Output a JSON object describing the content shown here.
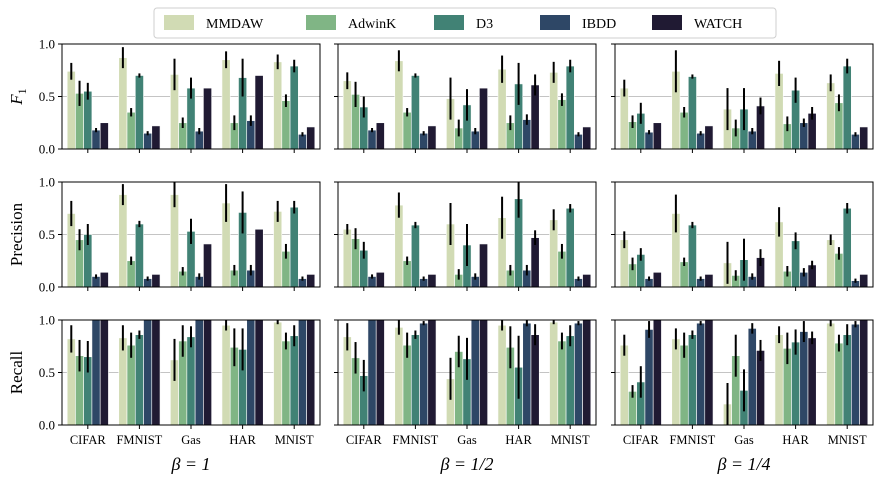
{
  "chart_data": {
    "type": "bar",
    "categories": [
      "CIFAR",
      "FMNIST",
      "Gas",
      "HAR",
      "MNIST"
    ],
    "legend": {
      "placement": "top-center",
      "entries": [
        "MMDAW",
        "AdwinK",
        "D3",
        "IBDD",
        "WATCH"
      ]
    },
    "colors": [
      "#d1dbb4",
      "#80b585",
      "#418275",
      "#2e4766",
      "#201a33"
    ],
    "columns": [
      {
        "xlabel": "β = 1"
      },
      {
        "xlabel": "β = 1/2"
      },
      {
        "xlabel": "β = 1/4"
      }
    ],
    "rows": [
      {
        "ylabel": "F1",
        "ylabel_main": "F",
        "ylabel_sub": "1"
      },
      {
        "ylabel": "Precision"
      },
      {
        "ylabel": "Recall"
      }
    ],
    "ylim": [
      0,
      1.0
    ],
    "yticks": [
      "0.0",
      "0.5",
      "1.0"
    ],
    "grid": "horizontal at 0.5",
    "panels": [
      [
        {
          "values": [
            [
              0.74,
              0.53,
              0.55,
              0.18,
              0.25
            ],
            [
              0.87,
              0.35,
              0.7,
              0.15,
              0.22
            ],
            [
              0.71,
              0.25,
              0.58,
              0.17,
              0.58
            ],
            [
              0.85,
              0.25,
              0.68,
              0.27,
              0.7
            ],
            [
              0.83,
              0.46,
              0.79,
              0.14,
              0.21
            ]
          ],
          "errors": [
            [
              0.08,
              0.12,
              0.08,
              0.02,
              0
            ],
            [
              0.1,
              0.04,
              0.02,
              0.02,
              0
            ],
            [
              0.15,
              0.05,
              0.1,
              0.03,
              0
            ],
            [
              0.08,
              0.07,
              0.18,
              0.05,
              0
            ],
            [
              0.07,
              0.06,
              0.06,
              0.02,
              0
            ]
          ]
        },
        {
          "values": [
            [
              0.65,
              0.52,
              0.4,
              0.18,
              0.25
            ],
            [
              0.84,
              0.35,
              0.7,
              0.15,
              0.22
            ],
            [
              0.48,
              0.2,
              0.42,
              0.17,
              0.58
            ],
            [
              0.76,
              0.25,
              0.62,
              0.28,
              0.61
            ],
            [
              0.73,
              0.47,
              0.79,
              0.14,
              0.21
            ]
          ],
          "errors": [
            [
              0.08,
              0.12,
              0.1,
              0.02,
              0
            ],
            [
              0.1,
              0.04,
              0.02,
              0.02,
              0
            ],
            [
              0.2,
              0.08,
              0.15,
              0.03,
              0
            ],
            [
              0.13,
              0.07,
              0.2,
              0.05,
              0.1
            ],
            [
              0.1,
              0.06,
              0.06,
              0.02,
              0
            ]
          ]
        },
        {
          "values": [
            [
              0.58,
              0.26,
              0.34,
              0.16,
              0.25
            ],
            [
              0.74,
              0.35,
              0.69,
              0.15,
              0.22
            ],
            [
              0.38,
              0.2,
              0.38,
              0.17,
              0.41
            ],
            [
              0.72,
              0.24,
              0.56,
              0.25,
              0.34
            ],
            [
              0.63,
              0.44,
              0.79,
              0.14,
              0.21
            ]
          ],
          "errors": [
            [
              0.08,
              0.06,
              0.1,
              0.02,
              0
            ],
            [
              0.2,
              0.05,
              0.02,
              0.02,
              0
            ],
            [
              0.2,
              0.08,
              0.2,
              0.03,
              0.08
            ],
            [
              0.12,
              0.07,
              0.12,
              0.04,
              0.06
            ],
            [
              0.08,
              0.08,
              0.07,
              0.02,
              0
            ]
          ]
        }
      ],
      [
        {
          "values": [
            [
              0.7,
              0.45,
              0.5,
              0.1,
              0.14
            ],
            [
              0.88,
              0.25,
              0.6,
              0.08,
              0.12
            ],
            [
              0.88,
              0.15,
              0.53,
              0.1,
              0.41
            ],
            [
              0.8,
              0.16,
              0.71,
              0.16,
              0.55
            ],
            [
              0.72,
              0.34,
              0.76,
              0.08,
              0.12
            ]
          ],
          "errors": [
            [
              0.12,
              0.1,
              0.1,
              0.02,
              0
            ],
            [
              0.1,
              0.04,
              0.03,
              0.02,
              0
            ],
            [
              0.12,
              0.04,
              0.12,
              0.03,
              0
            ],
            [
              0.18,
              0.05,
              0.2,
              0.05,
              0
            ],
            [
              0.1,
              0.07,
              0.06,
              0.02,
              0
            ]
          ]
        },
        {
          "values": [
            [
              0.55,
              0.46,
              0.35,
              0.1,
              0.14
            ],
            [
              0.78,
              0.25,
              0.59,
              0.08,
              0.12
            ],
            [
              0.6,
              0.12,
              0.4,
              0.1,
              0.41
            ],
            [
              0.66,
              0.16,
              0.84,
              0.16,
              0.47
            ],
            [
              0.64,
              0.34,
              0.75,
              0.08,
              0.12
            ]
          ],
          "errors": [
            [
              0.05,
              0.1,
              0.08,
              0.02,
              0
            ],
            [
              0.12,
              0.04,
              0.03,
              0.02,
              0
            ],
            [
              0.2,
              0.05,
              0.2,
              0.03,
              0
            ],
            [
              0.2,
              0.05,
              0.18,
              0.05,
              0.07
            ],
            [
              0.1,
              0.07,
              0.04,
              0.02,
              0
            ]
          ]
        },
        {
          "values": [
            [
              0.45,
              0.22,
              0.31,
              0.08,
              0.14
            ],
            [
              0.7,
              0.24,
              0.59,
              0.08,
              0.12
            ],
            [
              0.23,
              0.11,
              0.26,
              0.1,
              0.28
            ],
            [
              0.62,
              0.15,
              0.44,
              0.14,
              0.21
            ],
            [
              0.45,
              0.32,
              0.75,
              0.06,
              0.12
            ]
          ],
          "errors": [
            [
              0.08,
              0.06,
              0.06,
              0.02,
              0
            ],
            [
              0.18,
              0.04,
              0.03,
              0.02,
              0
            ],
            [
              0.2,
              0.05,
              0.2,
              0.03,
              0.08
            ],
            [
              0.14,
              0.05,
              0.08,
              0.04,
              0.04
            ],
            [
              0.05,
              0.06,
              0.05,
              0.02,
              0
            ]
          ]
        }
      ],
      [
        {
          "values": [
            [
              0.82,
              0.66,
              0.65,
              1.0,
              1.0
            ],
            [
              0.83,
              0.76,
              0.86,
              1.0,
              1.0
            ],
            [
              0.62,
              0.8,
              0.84,
              1.0,
              1.0
            ],
            [
              0.95,
              0.74,
              0.72,
              1.0,
              1.0
            ],
            [
              0.98,
              0.8,
              0.85,
              1.0,
              1.0
            ]
          ],
          "errors": [
            [
              0.13,
              0.15,
              0.15,
              0,
              0
            ],
            [
              0.12,
              0.12,
              0.04,
              0,
              0
            ],
            [
              0.2,
              0.15,
              0.1,
              0,
              0
            ],
            [
              0.05,
              0.18,
              0.2,
              0,
              0
            ],
            [
              0.02,
              0.08,
              0.1,
              0,
              0
            ]
          ]
        },
        {
          "values": [
            [
              0.84,
              0.64,
              0.47,
              1.0,
              1.0
            ],
            [
              0.93,
              0.76,
              0.86,
              0.97,
              1.0
            ],
            [
              0.44,
              0.7,
              0.63,
              1.0,
              1.0
            ],
            [
              0.95,
              0.74,
              0.55,
              0.97,
              0.86
            ],
            [
              0.98,
              0.8,
              0.85,
              0.97,
              1.0
            ]
          ],
          "errors": [
            [
              0.13,
              0.15,
              0.15,
              0,
              0
            ],
            [
              0.07,
              0.12,
              0.04,
              0.02,
              0
            ],
            [
              0.2,
              0.15,
              0.2,
              0,
              0
            ],
            [
              0.05,
              0.2,
              0.3,
              0.03,
              0.1
            ],
            [
              0.02,
              0.08,
              0.1,
              0.02,
              0
            ]
          ]
        },
        {
          "values": [
            [
              0.76,
              0.32,
              0.41,
              0.91,
              1.0
            ],
            [
              0.82,
              0.76,
              0.86,
              0.97,
              1.0
            ],
            [
              0.2,
              0.66,
              0.33,
              0.92,
              0.71
            ],
            [
              0.86,
              0.73,
              0.79,
              0.89,
              0.83
            ],
            [
              0.97,
              0.78,
              0.86,
              0.96,
              1.0
            ]
          ],
          "errors": [
            [
              0.1,
              0.06,
              0.15,
              0.08,
              0
            ],
            [
              0.1,
              0.12,
              0.04,
              0.02,
              0
            ],
            [
              0.2,
              0.2,
              0.2,
              0.05,
              0.1
            ],
            [
              0.08,
              0.15,
              0.12,
              0.1,
              0.06
            ],
            [
              0.03,
              0.08,
              0.1,
              0.03,
              0
            ]
          ]
        }
      ]
    ]
  }
}
